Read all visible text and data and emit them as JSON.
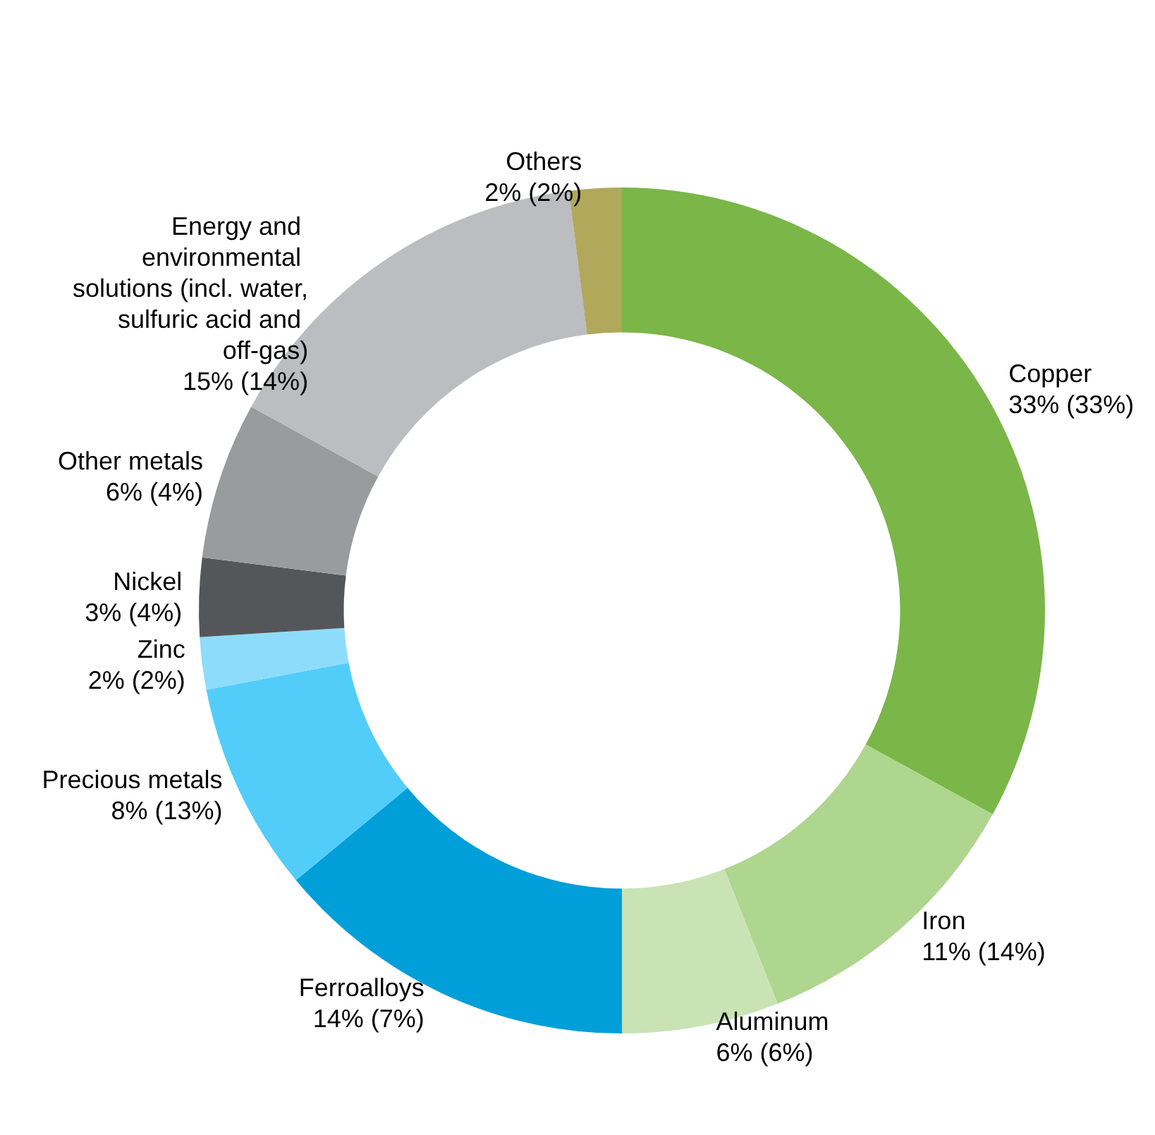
{
  "chart_data": {
    "type": "donut",
    "categories": [
      "Copper",
      "Iron",
      "Aluminum",
      "Ferroalloys",
      "Precious metals",
      "Zinc",
      "Nickel",
      "Other metals",
      "Energy and environmental solutions (incl. water, sulfuric acid and off-gas)",
      "Others"
    ],
    "values": [
      33,
      11,
      6,
      14,
      8,
      2,
      3,
      6,
      15,
      2
    ],
    "value_labels": [
      "33% (33%)",
      "11% (14%)",
      "6% (6%)",
      "14% (7%)",
      "8% (13%)",
      "2% (2%)",
      "3% (4%)",
      "6% (4%)",
      "15% (14%)",
      "2% (2%)"
    ],
    "colors": [
      "#7ab648",
      "#aed68e",
      "#c9e3b5",
      "#009fda",
      "#52cdf9",
      "#8edcfb",
      "#555659",
      "#9a9b9d",
      "#bcbdc0",
      "#b1a85c"
    ],
    "legend": false
  }
}
